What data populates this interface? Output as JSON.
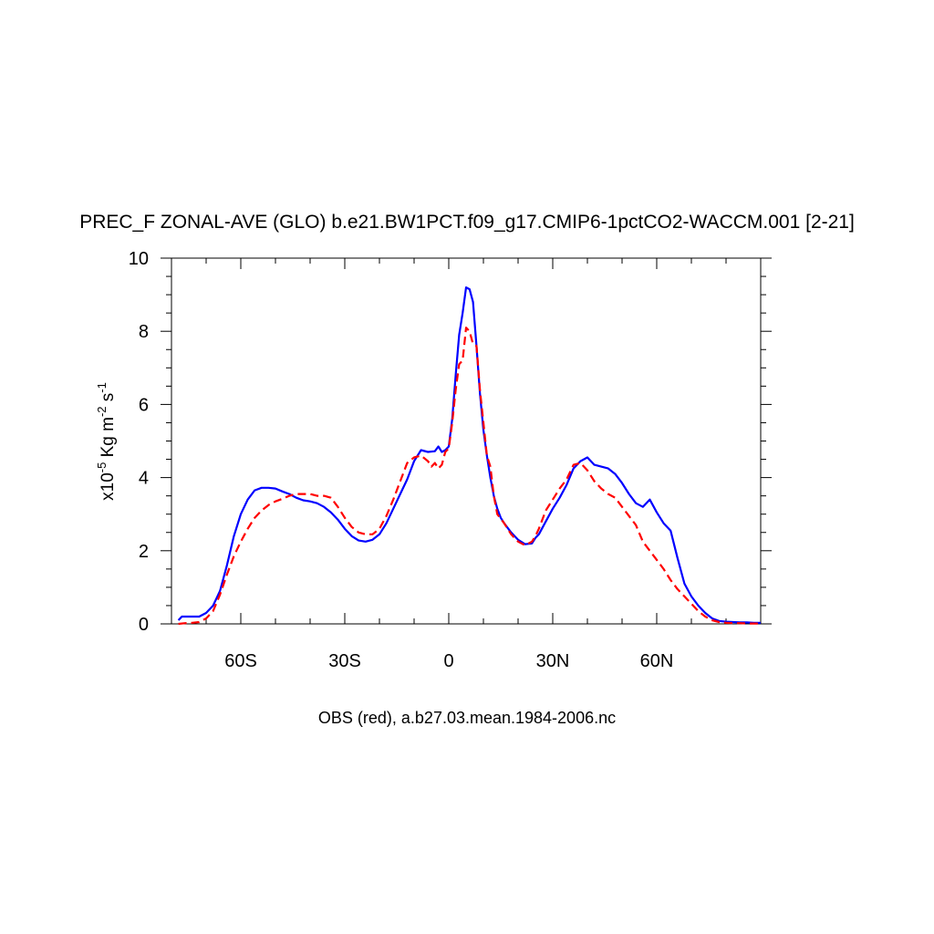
{
  "chart_data": {
    "type": "line",
    "title": "PREC_F ZONAL-AVE (GLO) b.e21.BW1PCT.f09_g17.CMIP6-1pctCO2-WACCM.001 [2-21]",
    "xlabel": "OBS (red), a.b27.03.mean.1984-2006.nc",
    "ylabel": {
      "prefix": "x10",
      "exp1": "-5",
      "mid1": " Kg m",
      "exp2": "-2",
      "mid2": " s",
      "exp3": "-1"
    },
    "xlim": [
      -80,
      90
    ],
    "ylim": [
      0,
      10
    ],
    "x_ticks": [
      {
        "value": -60,
        "label": "60S"
      },
      {
        "value": -30,
        "label": "30S"
      },
      {
        "value": 0,
        "label": "0"
      },
      {
        "value": 30,
        "label": "30N"
      },
      {
        "value": 60,
        "label": "60N"
      }
    ],
    "y_ticks": [
      {
        "value": 0,
        "label": "0"
      },
      {
        "value": 2,
        "label": "2"
      },
      {
        "value": 4,
        "label": "4"
      },
      {
        "value": 6,
        "label": "6"
      },
      {
        "value": 8,
        "label": "8"
      },
      {
        "value": 10,
        "label": "10"
      }
    ],
    "series": [
      {
        "color": "#0000ff",
        "dash": "solid",
        "x": [
          -78,
          -77,
          -75,
          -72,
          -70,
          -68,
          -66,
          -64,
          -62,
          -60,
          -58,
          -56,
          -54,
          -52,
          -50,
          -48,
          -46,
          -44,
          -42,
          -40,
          -38,
          -36,
          -34,
          -32,
          -30,
          -28,
          -26,
          -24,
          -22,
          -20,
          -18,
          -16,
          -14,
          -12,
          -10,
          -8,
          -6,
          -4,
          -3,
          -2,
          -1,
          0,
          1,
          2,
          3,
          4,
          5,
          6,
          7,
          8,
          9,
          10,
          11,
          12,
          13,
          14,
          15,
          16,
          18,
          20,
          22,
          24,
          25,
          26,
          28,
          30,
          32,
          34,
          36,
          38,
          40,
          42,
          44,
          46,
          48,
          50,
          52,
          54,
          56,
          58,
          60,
          62,
          64,
          66,
          68,
          70,
          72,
          74,
          76,
          78,
          80,
          82,
          84,
          86,
          88,
          90
        ],
        "y": [
          0.1,
          0.2,
          0.2,
          0.2,
          0.3,
          0.5,
          0.9,
          1.6,
          2.4,
          3.0,
          3.4,
          3.65,
          3.72,
          3.72,
          3.7,
          3.62,
          3.55,
          3.45,
          3.38,
          3.35,
          3.3,
          3.2,
          3.05,
          2.85,
          2.6,
          2.4,
          2.28,
          2.25,
          2.3,
          2.45,
          2.75,
          3.15,
          3.55,
          3.95,
          4.45,
          4.75,
          4.7,
          4.72,
          4.85,
          4.7,
          4.75,
          4.85,
          5.6,
          6.8,
          7.9,
          8.5,
          9.2,
          9.15,
          8.8,
          7.6,
          6.3,
          5.3,
          4.6,
          4.0,
          3.5,
          3.15,
          2.9,
          2.75,
          2.5,
          2.3,
          2.18,
          2.2,
          2.35,
          2.45,
          2.8,
          3.15,
          3.45,
          3.8,
          4.25,
          4.45,
          4.55,
          4.35,
          4.3,
          4.25,
          4.1,
          3.85,
          3.55,
          3.3,
          3.2,
          3.4,
          3.05,
          2.75,
          2.55,
          1.8,
          1.1,
          0.75,
          0.5,
          0.3,
          0.15,
          0.08,
          0.06,
          0.05,
          0.04,
          0.04,
          0.03,
          0.03
        ]
      },
      {
        "color": "#ff0000",
        "dash": "dashed",
        "x": [
          -78,
          -76,
          -74,
          -72,
          -70,
          -68,
          -66,
          -64,
          -62,
          -60,
          -58,
          -56,
          -54,
          -52,
          -50,
          -48,
          -46,
          -44,
          -42,
          -40,
          -38,
          -36,
          -34,
          -32,
          -30,
          -28,
          -26,
          -24,
          -22,
          -20,
          -18,
          -16,
          -14,
          -12,
          -10,
          -8,
          -6,
          -5,
          -4,
          -3,
          -2,
          -1,
          0,
          1,
          2,
          3,
          4,
          5,
          6,
          7,
          8,
          9,
          10,
          11,
          12,
          13,
          14,
          16,
          18,
          20,
          22,
          24,
          25,
          26,
          28,
          30,
          32,
          34,
          36,
          38,
          40,
          42,
          44,
          46,
          48,
          50,
          52,
          54,
          56,
          58,
          60,
          62,
          64,
          66,
          68,
          70,
          72,
          74,
          76,
          78,
          80,
          82,
          84,
          86,
          88,
          90
        ],
        "y": [
          0.0,
          0.02,
          0.03,
          0.05,
          0.15,
          0.35,
          0.8,
          1.35,
          1.85,
          2.25,
          2.6,
          2.9,
          3.1,
          3.25,
          3.35,
          3.42,
          3.5,
          3.55,
          3.55,
          3.55,
          3.5,
          3.5,
          3.45,
          3.2,
          2.9,
          2.65,
          2.5,
          2.45,
          2.45,
          2.6,
          2.95,
          3.4,
          3.9,
          4.4,
          4.55,
          4.6,
          4.45,
          4.3,
          4.4,
          4.25,
          4.35,
          4.7,
          4.8,
          5.5,
          6.4,
          7.1,
          7.2,
          8.1,
          8.0,
          7.65,
          7.6,
          6.4,
          5.5,
          4.6,
          4.3,
          3.5,
          3.0,
          2.75,
          2.45,
          2.25,
          2.15,
          2.25,
          2.4,
          2.6,
          3.1,
          3.4,
          3.7,
          3.95,
          4.35,
          4.4,
          4.2,
          3.9,
          3.7,
          3.55,
          3.45,
          3.2,
          2.95,
          2.7,
          2.25,
          2.0,
          1.75,
          1.5,
          1.2,
          0.95,
          0.75,
          0.55,
          0.35,
          0.2,
          0.1,
          0.05,
          0.03,
          0.02,
          0.02,
          0.01,
          0.01,
          0.01
        ]
      }
    ]
  }
}
